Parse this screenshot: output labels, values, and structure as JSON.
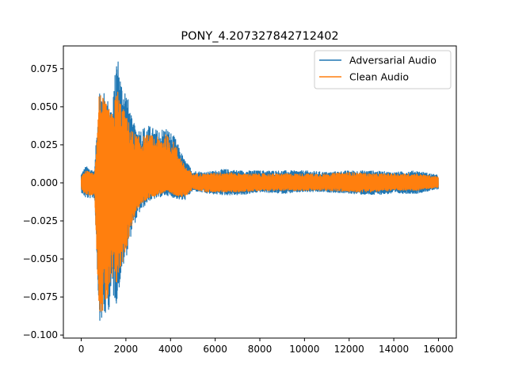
{
  "chart_data": {
    "type": "line",
    "title": "PONY_4.207327842712402",
    "xlabel": "",
    "ylabel": "",
    "xlim": [
      -800,
      16800
    ],
    "ylim": [
      -0.102,
      0.09
    ],
    "xticks": [
      0,
      2000,
      4000,
      6000,
      8000,
      10000,
      12000,
      14000,
      16000
    ],
    "yticks": [
      -0.1,
      -0.075,
      -0.05,
      -0.025,
      0.0,
      0.025,
      0.05,
      0.075
    ],
    "xtick_labels": [
      "0",
      "2000",
      "4000",
      "6000",
      "8000",
      "10000",
      "12000",
      "14000",
      "16000"
    ],
    "ytick_labels": [
      "−0.100",
      "−0.075",
      "−0.050",
      "−0.025",
      "0.000",
      "0.025",
      "0.050",
      "0.075"
    ],
    "grid": false,
    "legend_position": "top-right",
    "num_samples": 16000,
    "series": [
      {
        "name": "Adversarial Audio",
        "color": "#1f77b4",
        "envelope": {
          "x": [
            0,
            200,
            600,
            800,
            1000,
            1200,
            1400,
            1600,
            1800,
            2000,
            2300,
            2600,
            3000,
            3400,
            3800,
            4200,
            4600,
            5000,
            5600,
            6400,
            7200,
            8000,
            9000,
            10000,
            11000,
            12000,
            13000,
            14000,
            15000,
            16000
          ],
          "max": [
            0.006,
            0.011,
            0.008,
            0.065,
            0.06,
            0.055,
            0.05,
            0.088,
            0.068,
            0.063,
            0.04,
            0.036,
            0.038,
            0.035,
            0.037,
            0.03,
            0.016,
            0.008,
            0.007,
            0.009,
            0.008,
            0.008,
            0.008,
            0.008,
            0.007,
            0.008,
            0.008,
            0.007,
            0.008,
            0.005
          ],
          "min": [
            -0.006,
            -0.01,
            -0.01,
            -0.09,
            -0.093,
            -0.085,
            -0.075,
            -0.08,
            -0.06,
            -0.05,
            -0.03,
            -0.02,
            -0.012,
            -0.01,
            -0.008,
            -0.01,
            -0.012,
            -0.005,
            -0.007,
            -0.008,
            -0.008,
            -0.006,
            -0.007,
            -0.006,
            -0.006,
            -0.007,
            -0.008,
            -0.007,
            -0.007,
            -0.004
          ]
        }
      },
      {
        "name": "Clean Audio",
        "color": "#ff7f0e",
        "envelope": {
          "x": [
            0,
            200,
            600,
            800,
            1000,
            1200,
            1400,
            1600,
            1800,
            2000,
            2300,
            2600,
            3000,
            3400,
            3800,
            4200,
            4600,
            5000,
            5600,
            6400,
            7200,
            8000,
            9000,
            10000,
            11000,
            12000,
            13000,
            14000,
            15000,
            16000
          ],
          "max": [
            0.004,
            0.008,
            0.006,
            0.062,
            0.055,
            0.05,
            0.045,
            0.064,
            0.052,
            0.045,
            0.034,
            0.03,
            0.032,
            0.03,
            0.032,
            0.026,
            0.012,
            0.006,
            0.006,
            0.007,
            0.006,
            0.006,
            0.006,
            0.006,
            0.006,
            0.007,
            0.006,
            0.006,
            0.006,
            0.004
          ],
          "min": [
            -0.004,
            -0.008,
            -0.008,
            -0.085,
            -0.086,
            -0.078,
            -0.068,
            -0.068,
            -0.055,
            -0.045,
            -0.026,
            -0.016,
            -0.01,
            -0.008,
            -0.006,
            -0.008,
            -0.01,
            -0.004,
            -0.006,
            -0.006,
            -0.006,
            -0.005,
            -0.005,
            -0.005,
            -0.005,
            -0.006,
            -0.006,
            -0.005,
            -0.005,
            -0.003
          ]
        }
      }
    ]
  }
}
